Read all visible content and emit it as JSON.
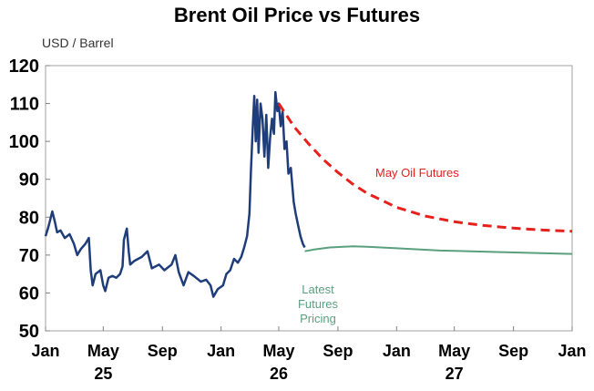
{
  "chart_data": {
    "type": "line",
    "title": "Brent Oil Price vs Futures",
    "ylabel": "USD / Barrel",
    "ylim": [
      50,
      120
    ],
    "yticks": [
      "50",
      "60",
      "70",
      "80",
      "90",
      "100",
      "110",
      "120"
    ],
    "x_tick_labels": [
      "Jan",
      "May",
      "Sep",
      "Jan",
      "May",
      "Sep",
      "Jan",
      "May",
      "Sep",
      "Jan"
    ],
    "x_tick_dates": [
      "2025-01",
      "2025-05",
      "2025-09",
      "2026-01",
      "2026-05",
      "2026-09",
      "2027-01",
      "2027-05",
      "2027-09",
      "2028-01"
    ],
    "year_labels": [
      {
        "label": "25",
        "date": "2025-05"
      },
      {
        "label": "26",
        "date": "2026-05"
      },
      {
        "label": "27",
        "date": "2027-05"
      }
    ],
    "grid": false,
    "series": [
      {
        "name": "",
        "color": "#1f3d7a",
        "style": "solid",
        "points": [
          [
            "2025-01-01",
            75
          ],
          [
            "2025-01-06",
            77
          ],
          [
            "2025-01-10",
            79
          ],
          [
            "2025-01-15",
            81.5
          ],
          [
            "2025-01-20",
            79
          ],
          [
            "2025-01-25",
            76
          ],
          [
            "2025-02-01",
            76.5
          ],
          [
            "2025-02-10",
            74.5
          ],
          [
            "2025-02-20",
            75.5
          ],
          [
            "2025-03-01",
            73
          ],
          [
            "2025-03-08",
            70
          ],
          [
            "2025-03-15",
            71.5
          ],
          [
            "2025-03-25",
            73
          ],
          [
            "2025-04-01",
            74.5
          ],
          [
            "2025-04-05",
            66
          ],
          [
            "2025-04-09",
            62
          ],
          [
            "2025-04-15",
            65
          ],
          [
            "2025-04-25",
            66
          ],
          [
            "2025-05-01",
            62
          ],
          [
            "2025-05-05",
            60.5
          ],
          [
            "2025-05-12",
            64
          ],
          [
            "2025-05-20",
            64.5
          ],
          [
            "2025-05-28",
            64
          ],
          [
            "2025-06-05",
            65
          ],
          [
            "2025-06-10",
            67
          ],
          [
            "2025-06-13",
            74
          ],
          [
            "2025-06-19",
            77
          ],
          [
            "2025-06-23",
            71
          ],
          [
            "2025-06-26",
            67.5
          ],
          [
            "2025-07-05",
            68.5
          ],
          [
            "2025-07-20",
            69.5
          ],
          [
            "2025-08-01",
            71
          ],
          [
            "2025-08-10",
            66.5
          ],
          [
            "2025-08-25",
            67.5
          ],
          [
            "2025-09-05",
            66
          ],
          [
            "2025-09-20",
            67.5
          ],
          [
            "2025-09-28",
            70
          ],
          [
            "2025-10-05",
            65.5
          ],
          [
            "2025-10-15",
            62
          ],
          [
            "2025-10-25",
            65.5
          ],
          [
            "2025-11-05",
            64.5
          ],
          [
            "2025-11-20",
            63
          ],
          [
            "2025-12-01",
            63.5
          ],
          [
            "2025-12-10",
            62
          ],
          [
            "2025-12-16",
            59
          ],
          [
            "2025-12-25",
            61
          ],
          [
            "2026-01-05",
            62
          ],
          [
            "2026-01-12",
            65
          ],
          [
            "2026-01-20",
            66
          ],
          [
            "2026-01-28",
            69
          ],
          [
            "2026-02-05",
            68
          ],
          [
            "2026-02-12",
            69.5
          ],
          [
            "2026-02-18",
            72
          ],
          [
            "2026-02-24",
            75
          ],
          [
            "2026-03-01",
            81
          ],
          [
            "2026-03-04",
            92
          ],
          [
            "2026-03-08",
            104
          ],
          [
            "2026-03-11",
            112
          ],
          [
            "2026-03-14",
            100
          ],
          [
            "2026-03-17",
            111
          ],
          [
            "2026-03-20",
            97
          ],
          [
            "2026-03-24",
            110
          ],
          [
            "2026-03-28",
            106
          ],
          [
            "2026-04-01",
            96
          ],
          [
            "2026-04-05",
            107
          ],
          [
            "2026-04-09",
            93
          ],
          [
            "2026-04-13",
            101
          ],
          [
            "2026-04-17",
            106
          ],
          [
            "2026-04-21",
            102
          ],
          [
            "2026-04-24",
            113
          ],
          [
            "2026-04-28",
            108
          ],
          [
            "2026-05-01",
            110
          ],
          [
            "2026-05-05",
            104
          ],
          [
            "2026-05-09",
            108
          ],
          [
            "2026-05-13",
            98
          ],
          [
            "2026-05-17",
            100
          ],
          [
            "2026-05-21",
            91.5
          ],
          [
            "2026-05-26",
            93
          ],
          [
            "2026-06-01",
            84
          ],
          [
            "2026-06-05",
            81
          ],
          [
            "2026-06-10",
            78
          ],
          [
            "2026-06-15",
            75
          ],
          [
            "2026-06-20",
            73
          ],
          [
            "2026-06-24",
            72
          ]
        ]
      },
      {
        "name": "Latest Futures Pricing",
        "color": "#5aa07f",
        "style": "solid",
        "points": [
          [
            "2026-06-24",
            71
          ],
          [
            "2026-07-15",
            71.5
          ],
          [
            "2026-08-15",
            72
          ],
          [
            "2026-10-01",
            72.3
          ],
          [
            "2026-11-01",
            72.2
          ],
          [
            "2027-01-01",
            71.8
          ],
          [
            "2027-04-01",
            71.2
          ],
          [
            "2027-07-01",
            70.9
          ],
          [
            "2027-10-01",
            70.6
          ],
          [
            "2028-01-01",
            70.3
          ]
        ]
      },
      {
        "name": "May Oil Futures",
        "color": "#e8201c",
        "style": "dashed",
        "points": [
          [
            "2026-05-01",
            110
          ],
          [
            "2026-06-01",
            104
          ],
          [
            "2026-07-01",
            99.5
          ],
          [
            "2026-08-01",
            95.3
          ],
          [
            "2026-09-01",
            91.8
          ],
          [
            "2026-10-01",
            88.8
          ],
          [
            "2026-11-01",
            86.3
          ],
          [
            "2027-01-01",
            82.6
          ],
          [
            "2027-03-01",
            80.3
          ],
          [
            "2027-05-01",
            78.8
          ],
          [
            "2027-07-01",
            77.8
          ],
          [
            "2027-09-01",
            77.1
          ],
          [
            "2027-11-01",
            76.6
          ],
          [
            "2028-01-01",
            76.3
          ]
        ]
      }
    ],
    "annotations": [
      {
        "id": "may",
        "text": "May Oil Futures",
        "color": "#e8201c"
      },
      {
        "id": "latest",
        "lines": [
          "Latest",
          "Futures",
          "Pricing"
        ],
        "color": "#5aa07f"
      }
    ]
  }
}
